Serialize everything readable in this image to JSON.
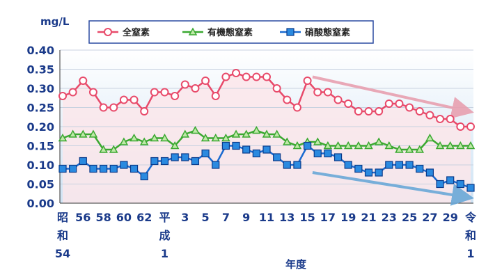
{
  "chart_data": {
    "type": "line",
    "ylabel": "mg/L",
    "xlabel": "年度",
    "ylim": [
      0,
      0.4
    ],
    "yticks": [
      "0.00",
      "0.05",
      "0.10",
      "0.15",
      "0.20",
      "0.25",
      "0.30",
      "0.35",
      "0.40"
    ],
    "grid": true,
    "legend_position": "top",
    "x_tick_labels": [
      {
        "index": 0,
        "lines": [
          "昭",
          "和",
          "54"
        ]
      },
      {
        "index": 2,
        "lines": [
          "56"
        ]
      },
      {
        "index": 4,
        "lines": [
          "58"
        ]
      },
      {
        "index": 6,
        "lines": [
          "60"
        ]
      },
      {
        "index": 8,
        "lines": [
          "62"
        ]
      },
      {
        "index": 10,
        "lines": [
          "平",
          "成",
          "1"
        ]
      },
      {
        "index": 12,
        "lines": [
          "3"
        ]
      },
      {
        "index": 14,
        "lines": [
          "5"
        ]
      },
      {
        "index": 16,
        "lines": [
          "7"
        ]
      },
      {
        "index": 18,
        "lines": [
          "9"
        ]
      },
      {
        "index": 20,
        "lines": [
          "11"
        ]
      },
      {
        "index": 22,
        "lines": [
          "13"
        ]
      },
      {
        "index": 24,
        "lines": [
          "15"
        ]
      },
      {
        "index": 26,
        "lines": [
          "17"
        ]
      },
      {
        "index": 28,
        "lines": [
          "19"
        ]
      },
      {
        "index": 30,
        "lines": [
          "21"
        ]
      },
      {
        "index": 32,
        "lines": [
          "23"
        ]
      },
      {
        "index": 34,
        "lines": [
          "25"
        ]
      },
      {
        "index": 36,
        "lines": [
          "27"
        ]
      },
      {
        "index": 38,
        "lines": [
          "29"
        ]
      },
      {
        "index": 40,
        "lines": [
          "令",
          "和",
          "1"
        ]
      }
    ],
    "series": [
      {
        "name": "全窒素",
        "color": "#e84a6a",
        "fill": "#fbe6ea",
        "marker": "circle",
        "values": [
          0.28,
          0.29,
          0.32,
          0.29,
          0.25,
          0.25,
          0.27,
          0.27,
          0.24,
          0.29,
          0.29,
          0.28,
          0.31,
          0.3,
          0.32,
          0.28,
          0.33,
          0.34,
          0.33,
          0.33,
          0.33,
          0.3,
          0.27,
          0.25,
          0.32,
          0.29,
          0.29,
          0.27,
          0.26,
          0.24,
          0.24,
          0.24,
          0.26,
          0.26,
          0.25,
          0.24,
          0.23,
          0.22,
          0.22,
          0.2,
          0.2
        ]
      },
      {
        "name": "有機態窒素",
        "color": "#3aa830",
        "marker": "triangle",
        "values": [
          0.17,
          0.18,
          0.18,
          0.18,
          0.14,
          0.14,
          0.16,
          0.17,
          0.16,
          0.17,
          0.17,
          0.15,
          0.18,
          0.19,
          0.17,
          0.17,
          0.17,
          0.18,
          0.18,
          0.19,
          0.18,
          0.18,
          0.16,
          0.15,
          0.16,
          0.16,
          0.15,
          0.15,
          0.15,
          0.15,
          0.15,
          0.16,
          0.15,
          0.14,
          0.14,
          0.14,
          0.17,
          0.15,
          0.15,
          0.15,
          0.15
        ]
      },
      {
        "name": "硝酸態窒素",
        "color": "#1a6ad0",
        "marker": "square",
        "values": [
          0.09,
          0.09,
          0.11,
          0.09,
          0.09,
          0.09,
          0.1,
          0.09,
          0.07,
          0.11,
          0.11,
          0.12,
          0.12,
          0.11,
          0.13,
          0.1,
          0.15,
          0.15,
          0.14,
          0.13,
          0.14,
          0.12,
          0.1,
          0.1,
          0.15,
          0.13,
          0.13,
          0.12,
          0.1,
          0.09,
          0.08,
          0.08,
          0.1,
          0.1,
          0.1,
          0.09,
          0.08,
          0.05,
          0.06,
          0.05,
          0.04
        ]
      }
    ],
    "trend_arrows": [
      {
        "series": "全窒素",
        "color": "#e8a0b0",
        "from": [
          24.5,
          0.33
        ],
        "to": [
          39.8,
          0.24
        ]
      },
      {
        "series": "硝酸態窒素",
        "color": "#6aa8d8",
        "from": [
          24.5,
          0.08
        ],
        "to": [
          39.8,
          0.015
        ]
      }
    ]
  }
}
